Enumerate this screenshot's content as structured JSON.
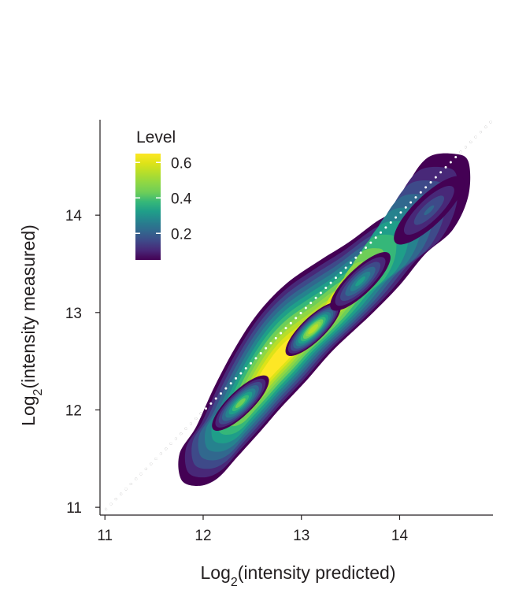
{
  "chart_data": {
    "type": "density contour",
    "xlabel": {
      "prefix": "Log",
      "sub": "2",
      "rest": "(intensity predicted)"
    },
    "ylabel": {
      "prefix": "Log",
      "sub": "2",
      "rest": "(intensity measured)"
    },
    "xlim": [
      10.95,
      14.95
    ],
    "ylim": [
      10.92,
      14.98
    ],
    "xticks": [
      11,
      12,
      13,
      14
    ],
    "yticks": [
      11,
      12,
      13,
      14
    ],
    "grid": false,
    "reference_line": {
      "style": "dotted",
      "color": "#ffffff",
      "from": [
        10.96,
        10.93
      ],
      "to": [
        14.95,
        14.98
      ]
    },
    "legend": {
      "title": "Level",
      "placement": "top-left",
      "ticks": [
        0.2,
        0.4,
        0.6
      ],
      "range": [
        0.05,
        0.65
      ]
    },
    "density_levels": [
      0.05,
      0.1,
      0.15,
      0.2,
      0.25,
      0.3,
      0.35,
      0.4,
      0.45,
      0.5,
      0.55,
      0.6
    ],
    "level_colors": [
      "#440154",
      "#482878",
      "#3e4a89",
      "#31688e",
      "#26828e",
      "#1f9e89",
      "#35b779",
      "#6ece58",
      "#8fd744",
      "#b5de2b",
      "#dde318",
      "#fde725"
    ],
    "peaks": [
      {
        "x": 12.79,
        "y": 12.53,
        "value": 0.65
      },
      {
        "x": 13.12,
        "y": 12.83,
        "value": 0.5
      },
      {
        "x": 12.38,
        "y": 12.07,
        "value": 0.4
      },
      {
        "x": 13.6,
        "y": 13.32,
        "value": 0.3
      },
      {
        "x": 14.3,
        "y": 14.05,
        "value": 0.2
      }
    ],
    "outline": [
      [
        11.78,
        11.28
      ],
      [
        11.76,
        11.55
      ],
      [
        11.93,
        11.83
      ],
      [
        12.12,
        12.25
      ],
      [
        12.35,
        12.68
      ],
      [
        12.58,
        13.02
      ],
      [
        12.85,
        13.3
      ],
      [
        13.18,
        13.53
      ],
      [
        13.48,
        13.72
      ],
      [
        13.76,
        13.93
      ],
      [
        14.02,
        14.1
      ],
      [
        14.12,
        14.38
      ],
      [
        14.3,
        14.6
      ],
      [
        14.55,
        14.63
      ],
      [
        14.7,
        14.55
      ],
      [
        14.7,
        14.2
      ],
      [
        14.54,
        13.85
      ],
      [
        14.26,
        13.6
      ],
      [
        14.0,
        13.28
      ],
      [
        13.7,
        12.97
      ],
      [
        13.33,
        12.62
      ],
      [
        13.05,
        12.3
      ],
      [
        12.78,
        12.01
      ],
      [
        12.6,
        11.8
      ],
      [
        12.35,
        11.52
      ],
      [
        12.15,
        11.3
      ],
      [
        11.96,
        11.22
      ]
    ]
  }
}
